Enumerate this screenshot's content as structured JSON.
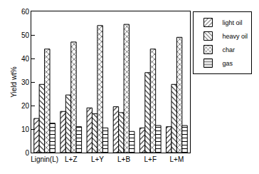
{
  "chart_data": {
    "type": "bar",
    "y_label": "Yield wt%",
    "categories": [
      "Lignin(L)",
      "L+Z",
      "L+Y",
      "L+B",
      "L+F",
      "L+M"
    ],
    "series": [
      {
        "name": "light oil",
        "color": "#000000",
        "values": [
          14.5,
          17.5,
          19,
          19.5,
          10.5,
          11
        ]
      },
      {
        "name": "heavy oil",
        "color": "#000000",
        "values": [
          29,
          24.5,
          16.5,
          17,
          34,
          29
        ]
      },
      {
        "name": "char",
        "color": "#000000",
        "values": [
          44,
          47,
          54,
          54.5,
          44,
          49
        ]
      },
      {
        "name": "gas",
        "color": "#000000",
        "values": [
          12.5,
          11,
          10.5,
          9,
          11.5,
          11.5
        ]
      }
    ],
    "ylim": [
      0,
      60
    ],
    "yticks": [
      0,
      10,
      20,
      30,
      40,
      50,
      60
    ],
    "grid": false,
    "legend": "upper right"
  }
}
